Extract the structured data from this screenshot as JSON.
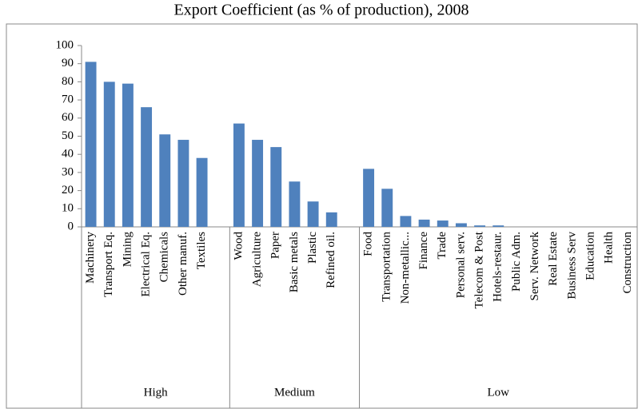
{
  "chart_data": {
    "type": "bar",
    "title": "Export Coefficient (as % of production), 2008",
    "color": "#4f81bd",
    "ylim": [
      0,
      100
    ],
    "yticks": [
      0,
      10,
      20,
      30,
      40,
      50,
      60,
      70,
      80,
      90,
      100
    ],
    "grid": false,
    "groups": [
      {
        "label": "High",
        "categories": [
          "Machinery",
          "Transport Eq.",
          "Mining",
          "Electrical Eq.",
          "Chemicals",
          "Other manuf.",
          "Textiles"
        ],
        "values": [
          91,
          80,
          79,
          66,
          51,
          48,
          38
        ]
      },
      {
        "label": "Medium",
        "categories": [
          "Wood",
          "Agriculture",
          "Paper",
          "Basic metals",
          "Plastic",
          "Refined oil."
        ],
        "values": [
          57,
          48,
          44,
          25,
          14,
          8
        ]
      },
      {
        "label": "Low",
        "categories": [
          "Food",
          "Transportation",
          "Non-metallic...",
          "Finance",
          "Trade",
          "Personal serv.",
          "Telecom & Post",
          "Hotels-restaur.",
          "Public Adm.",
          "Serv. Network",
          "Real Estate",
          "Business Serv",
          "Education",
          "Health",
          "Construction"
        ],
        "values": [
          32,
          21,
          6,
          4,
          3.5,
          2,
          0.8,
          0.8,
          0,
          0,
          0,
          0,
          0,
          0,
          0
        ]
      }
    ]
  }
}
